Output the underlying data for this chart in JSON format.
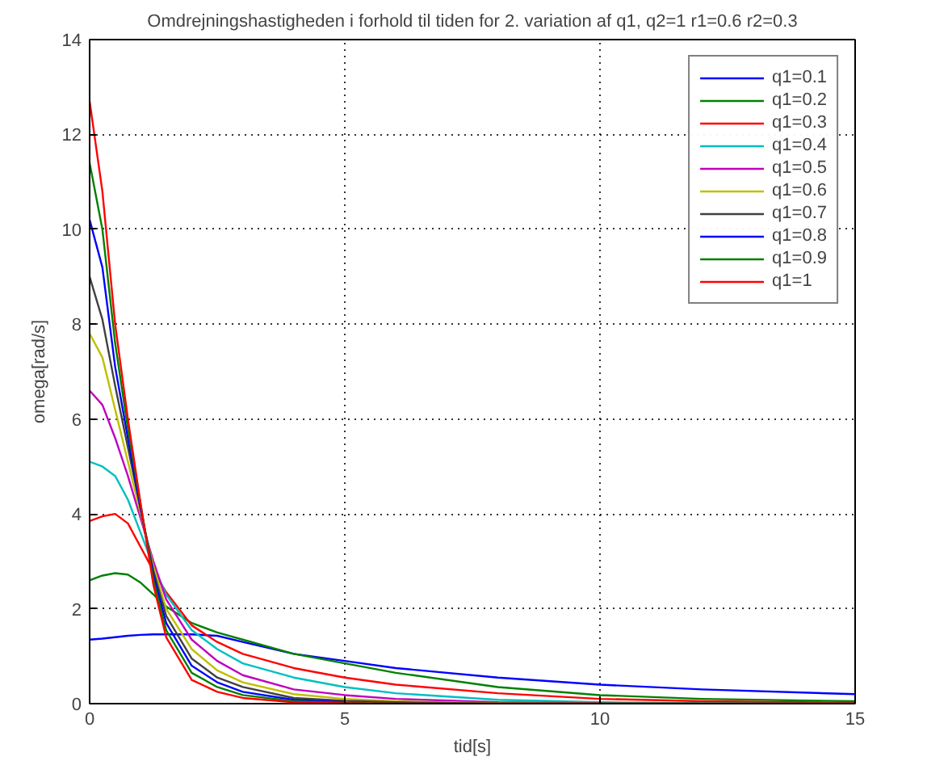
{
  "chart_data": {
    "type": "line",
    "title": "Omdrejningshastigheden i forhold til tiden for 2. variation af q1, q2=1 r1=0.6 r2=0.3",
    "xlabel": "tid[s]",
    "ylabel": "omega[rad/s]",
    "x": [
      0,
      0.25,
      0.5,
      0.75,
      1,
      1.25,
      1.5,
      2,
      2.5,
      3,
      4,
      5,
      6,
      8,
      10,
      12,
      15
    ],
    "xlim": [
      0,
      15
    ],
    "ylim": [
      0,
      14
    ],
    "xticks": [
      0,
      5,
      10,
      15
    ],
    "yticks": [
      0,
      2,
      4,
      6,
      8,
      10,
      12,
      14
    ],
    "grid": true,
    "legend": "top right",
    "line_style": "solid",
    "marker": "none",
    "series": [
      {
        "name": "q1=0.1",
        "color": "#0000ff",
        "values": [
          1.35,
          1.37,
          1.4,
          1.43,
          1.45,
          1.46,
          1.46,
          1.46,
          1.43,
          1.3,
          1.05,
          0.9,
          0.75,
          0.55,
          0.4,
          0.3,
          0.2
        ]
      },
      {
        "name": "q1=0.2",
        "color": "#008000",
        "values": [
          2.6,
          2.7,
          2.75,
          2.72,
          2.55,
          2.3,
          2.05,
          1.7,
          1.5,
          1.35,
          1.05,
          0.85,
          0.65,
          0.35,
          0.18,
          0.1,
          0.05
        ]
      },
      {
        "name": "q1=0.3",
        "color": "#ff0000",
        "values": [
          3.85,
          3.95,
          4.0,
          3.8,
          3.3,
          2.8,
          2.35,
          1.65,
          1.3,
          1.05,
          0.75,
          0.55,
          0.4,
          0.22,
          0.1,
          0.05,
          0.02
        ]
      },
      {
        "name": "q1=0.4",
        "color": "#00bfbf",
        "values": [
          5.1,
          5.0,
          4.8,
          4.3,
          3.6,
          2.9,
          2.3,
          1.55,
          1.15,
          0.85,
          0.55,
          0.35,
          0.22,
          0.08,
          0.03,
          0.01,
          0
        ]
      },
      {
        "name": "q1=0.5",
        "color": "#bf00bf",
        "values": [
          6.6,
          6.3,
          5.6,
          4.8,
          3.9,
          3.0,
          2.2,
          1.35,
          0.9,
          0.6,
          0.3,
          0.18,
          0.1,
          0.03,
          0.01,
          null,
          null
        ]
      },
      {
        "name": "q1=0.6",
        "color": "#bfbf00",
        "values": [
          7.8,
          7.3,
          6.2,
          5.1,
          4.0,
          2.9,
          2.0,
          1.15,
          0.7,
          0.45,
          0.2,
          0.1,
          0.05,
          0.01,
          0,
          null,
          null
        ]
      },
      {
        "name": "q1=0.7",
        "color": "#404040",
        "values": [
          9.0,
          8.1,
          6.7,
          5.4,
          4.1,
          2.8,
          1.85,
          0.95,
          0.55,
          0.35,
          0.12,
          0.06,
          0.03,
          0,
          0,
          0,
          0
        ]
      },
      {
        "name": "q1=0.8",
        "color": "#0000ff",
        "values": [
          10.2,
          9.2,
          7.1,
          5.6,
          4.1,
          2.7,
          1.7,
          0.8,
          0.45,
          0.25,
          0.08,
          0.03,
          null,
          null,
          null,
          null,
          null
        ]
      },
      {
        "name": "q1=0.9",
        "color": "#008000",
        "values": [
          11.4,
          10.0,
          7.6,
          5.8,
          4.2,
          2.6,
          1.55,
          0.65,
          0.35,
          0.18,
          0.05,
          0.02,
          0,
          0,
          0,
          0,
          0
        ]
      },
      {
        "name": "q1=1",
        "color": "#ff0000",
        "values": [
          12.7,
          10.8,
          8.0,
          6.0,
          4.2,
          2.5,
          1.4,
          0.5,
          0.25,
          0.12,
          0.03,
          0.01,
          0,
          0,
          0,
          0,
          0
        ]
      }
    ]
  }
}
